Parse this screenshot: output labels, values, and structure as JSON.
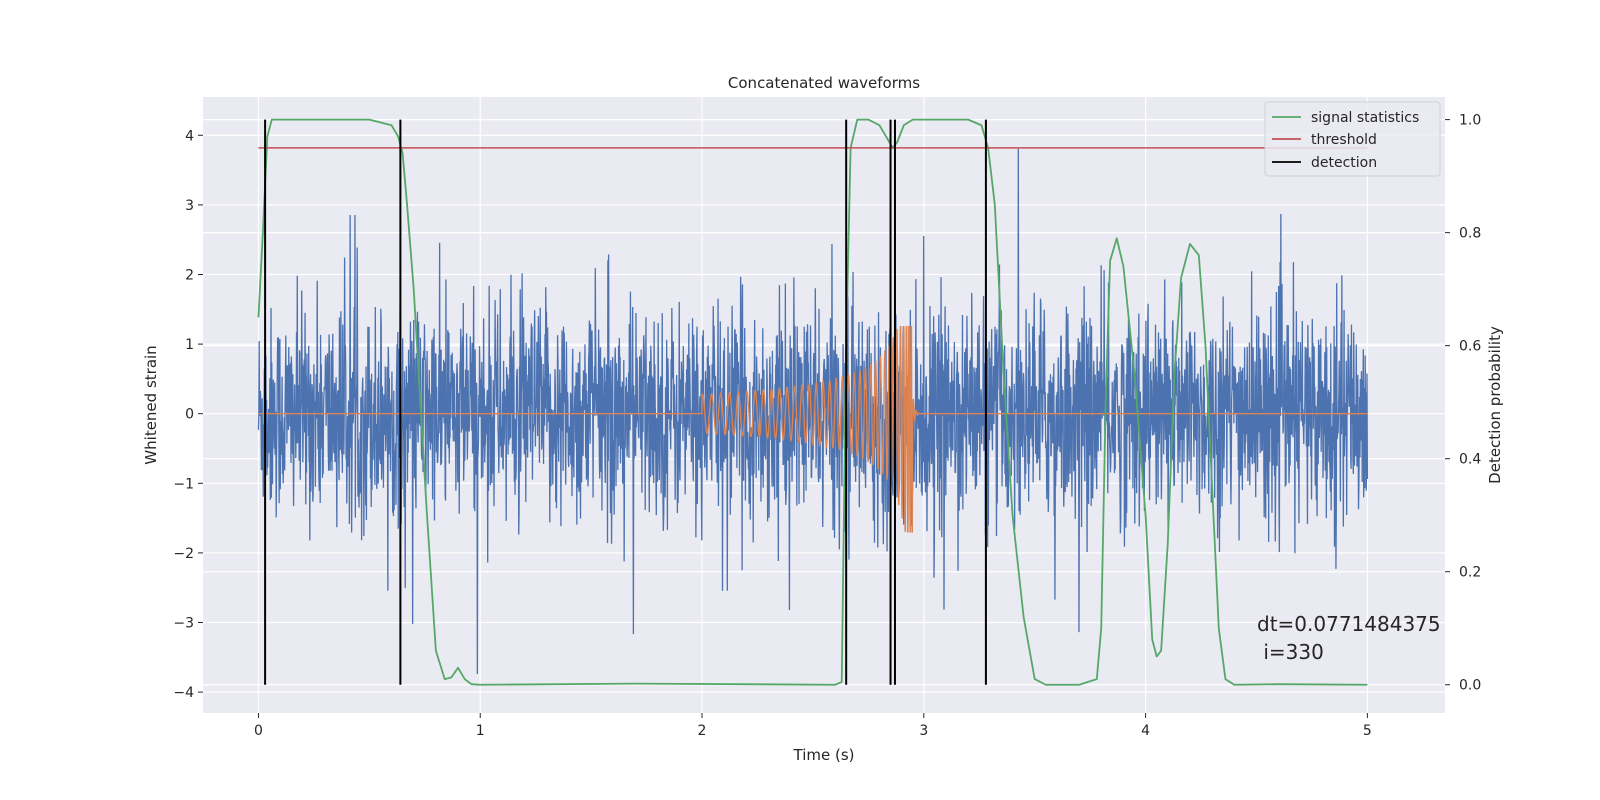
{
  "chart_data": {
    "type": "line",
    "title": "Concatenated waveforms",
    "xlabel": "Time (s)",
    "ylabel": "Whitened strain",
    "y2label": "Detection probability",
    "xlim": [
      -0.25,
      5.35
    ],
    "ylim": [
      -4.3,
      4.55
    ],
    "y2lim": [
      -0.05,
      1.04
    ],
    "xticks": [
      0,
      1,
      2,
      3,
      4,
      5
    ],
    "yticks": [
      -4,
      -3,
      -2,
      -1,
      0,
      1,
      2,
      3,
      4
    ],
    "y2ticks": [
      0.0,
      0.2,
      0.4,
      0.6,
      0.8,
      1.0
    ],
    "ytick_labels": [
      "−4",
      "−3",
      "−2",
      "−1",
      "0",
      "1",
      "2",
      "3",
      "4"
    ],
    "y2tick_labels": [
      "0.0",
      "0.2",
      "0.4",
      "0.6",
      "0.8",
      "1.0"
    ],
    "grid": true,
    "legend_position": "top-right",
    "colors": {
      "background": "#eaeaf2",
      "strain": "#4c72b0",
      "template": "#dd8452",
      "signal_statistics": "#55a868",
      "threshold": "#c44e52",
      "detection": "#000000"
    },
    "series": [
      {
        "name": "signal statistics",
        "axis": "right",
        "x": [
          0.0,
          0.02,
          0.04,
          0.06,
          0.08,
          0.1,
          0.15,
          0.3,
          0.5,
          0.6,
          0.63,
          0.65,
          0.67,
          0.7,
          0.73,
          0.76,
          0.8,
          0.84,
          0.87,
          0.9,
          0.93,
          0.96,
          1.0,
          1.7,
          2.6,
          2.63,
          2.65,
          2.67,
          2.7,
          2.75,
          2.8,
          2.83,
          2.86,
          2.88,
          2.91,
          2.95,
          3.0,
          3.2,
          3.26,
          3.29,
          3.32,
          3.36,
          3.4,
          3.45,
          3.5,
          3.55,
          3.7,
          3.78,
          3.8,
          3.82,
          3.84,
          3.87,
          3.9,
          3.95,
          4.0,
          4.03,
          4.05,
          4.07,
          4.1,
          4.13,
          4.16,
          4.2,
          4.24,
          4.27,
          4.3,
          4.33,
          4.36,
          4.4,
          4.6,
          5.0
        ],
        "values": [
          0.65,
          0.8,
          0.97,
          1.0,
          1.0,
          1.0,
          1.0,
          1.0,
          1.0,
          0.99,
          0.97,
          0.94,
          0.85,
          0.7,
          0.5,
          0.3,
          0.06,
          0.01,
          0.013,
          0.03,
          0.01,
          0.001,
          0.0,
          0.002,
          0.0,
          0.005,
          0.6,
          0.95,
          1.0,
          1.0,
          0.99,
          0.97,
          0.95,
          0.96,
          0.99,
          1.0,
          1.0,
          1.0,
          0.99,
          0.95,
          0.85,
          0.55,
          0.3,
          0.12,
          0.01,
          0.0,
          0.0,
          0.01,
          0.1,
          0.5,
          0.75,
          0.79,
          0.74,
          0.55,
          0.3,
          0.08,
          0.05,
          0.06,
          0.25,
          0.55,
          0.72,
          0.78,
          0.76,
          0.6,
          0.35,
          0.1,
          0.01,
          0.0,
          0.001,
          0.0
        ]
      },
      {
        "name": "threshold",
        "axis": "right",
        "x": [
          0.0,
          5.0
        ],
        "values": [
          0.95,
          0.95
        ]
      },
      {
        "name": "detection",
        "axis": "right",
        "x": [
          0.03,
          0.64,
          2.65,
          2.85,
          2.87,
          3.28
        ],
        "range": [
          0.0,
          1.0
        ]
      }
    ],
    "annotation_lines": [
      "dt=0.0771484375",
      " i=330"
    ]
  }
}
